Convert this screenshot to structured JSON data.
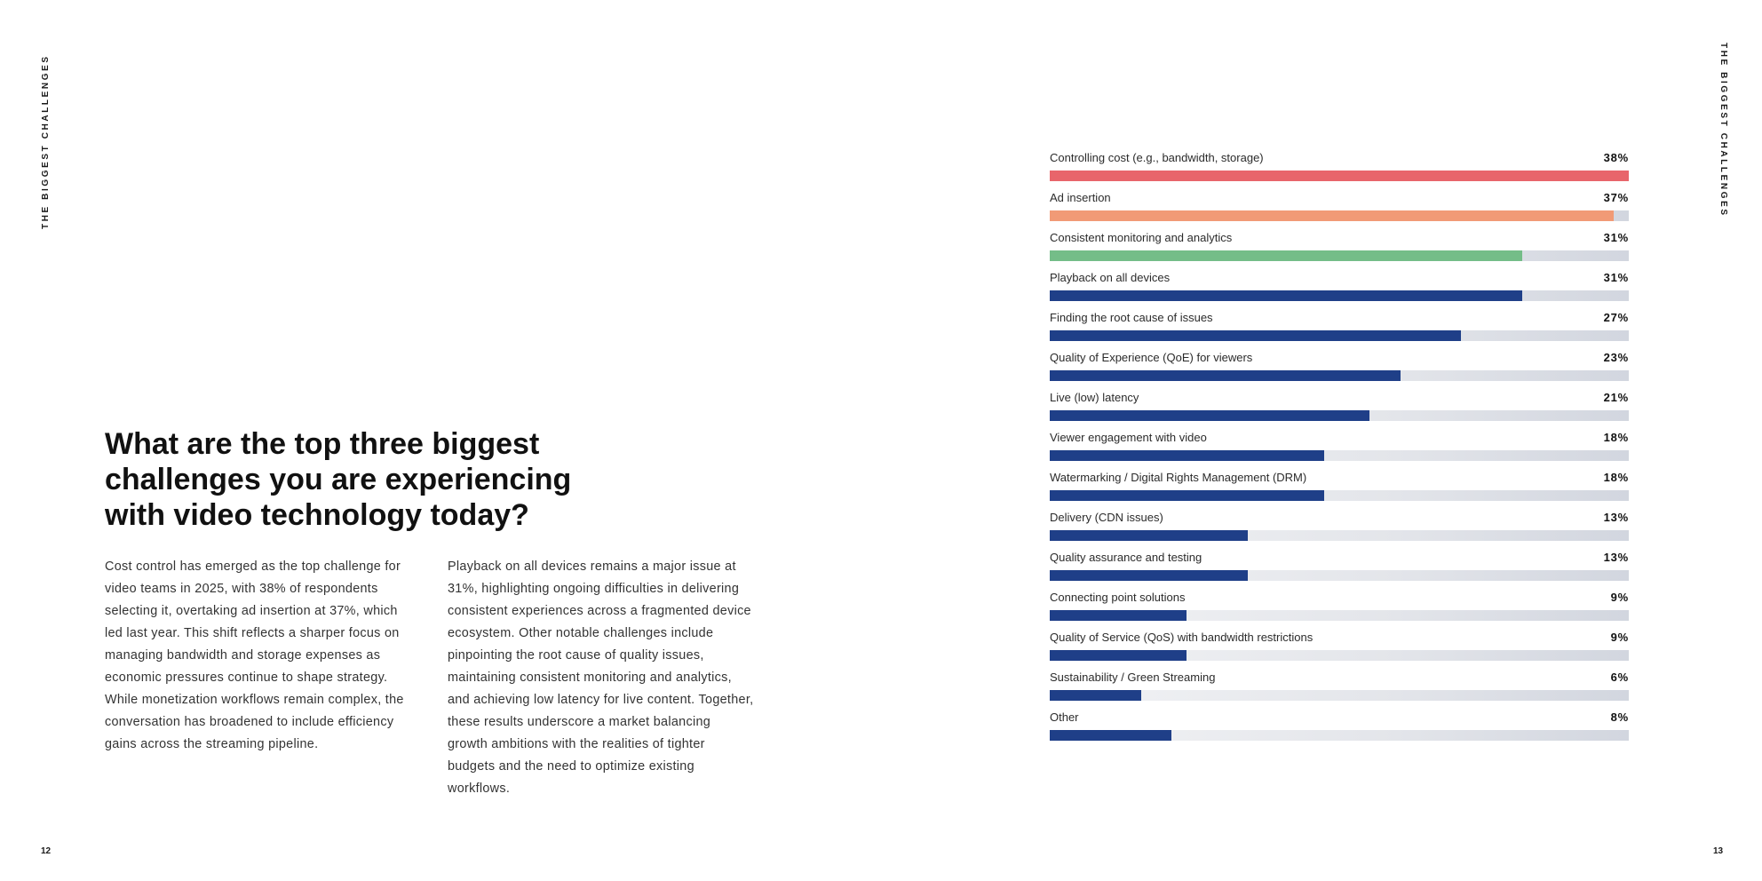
{
  "side_label": "THE BIGGEST CHALLENGES",
  "page_numbers": {
    "left": "12",
    "right": "13"
  },
  "heading": "What are the top three biggest challenges you are experiencing with video technology today?",
  "paragraphs": [
    "Cost control has emerged as the top challenge for video teams in 2025, with 38% of respondents selecting it, overtaking ad insertion at 37%, which led last year. This shift reflects a sharper focus on managing bandwidth and storage expenses as economic pressures continue to shape strategy. While monetization workflows remain complex, the conversation has broadened to include efficiency gains across the streaming pipeline.",
    "Playback on all devices remains a major issue at 31%, highlighting ongoing difficulties in delivering consistent experiences across a fragmented device ecosystem. Other notable challenges include pinpointing the root cause of quality issues, maintaining consistent monitoring and analytics, and achieving low latency for live content. Together, these results underscore a market balancing growth ambitions with the realities of tighter budgets and the need to optimize existing workflows."
  ],
  "chart_data": {
    "type": "bar",
    "orientation": "horizontal",
    "title": "",
    "xlabel": "",
    "ylabel": "",
    "xlim": [
      0,
      38
    ],
    "categories": [
      "Controlling cost (e.g., bandwidth, storage)",
      "Ad insertion",
      "Consistent monitoring and analytics",
      "Playback on all devices",
      "Finding the root cause of issues",
      "Quality of Experience (QoE) for viewers",
      "Live (low) latency",
      "Viewer engagement with video",
      "Watermarking / Digital Rights Management (DRM)",
      "Delivery (CDN issues)",
      "Quality assurance and testing",
      "Connecting point solutions",
      "Quality of Service (QoS) with bandwidth restrictions",
      "Sustainability / Green Streaming",
      "Other"
    ],
    "values": [
      38,
      37,
      31,
      31,
      27,
      23,
      21,
      18,
      18,
      13,
      13,
      9,
      9,
      6,
      8
    ],
    "value_labels": [
      "38%",
      "37%",
      "31%",
      "31%",
      "27%",
      "23%",
      "21%",
      "18%",
      "18%",
      "13%",
      "13%",
      "9%",
      "9%",
      "6%",
      "8%"
    ],
    "colors": [
      "#e8656b",
      "#f19a76",
      "#74bd88",
      "#1f3f88",
      "#1f3f88",
      "#1f3f88",
      "#1f3f88",
      "#1f3f88",
      "#1f3f88",
      "#1f3f88",
      "#1f3f88",
      "#1f3f88",
      "#1f3f88",
      "#1f3f88",
      "#1f3f88"
    ],
    "grid": false,
    "legend": "none"
  }
}
